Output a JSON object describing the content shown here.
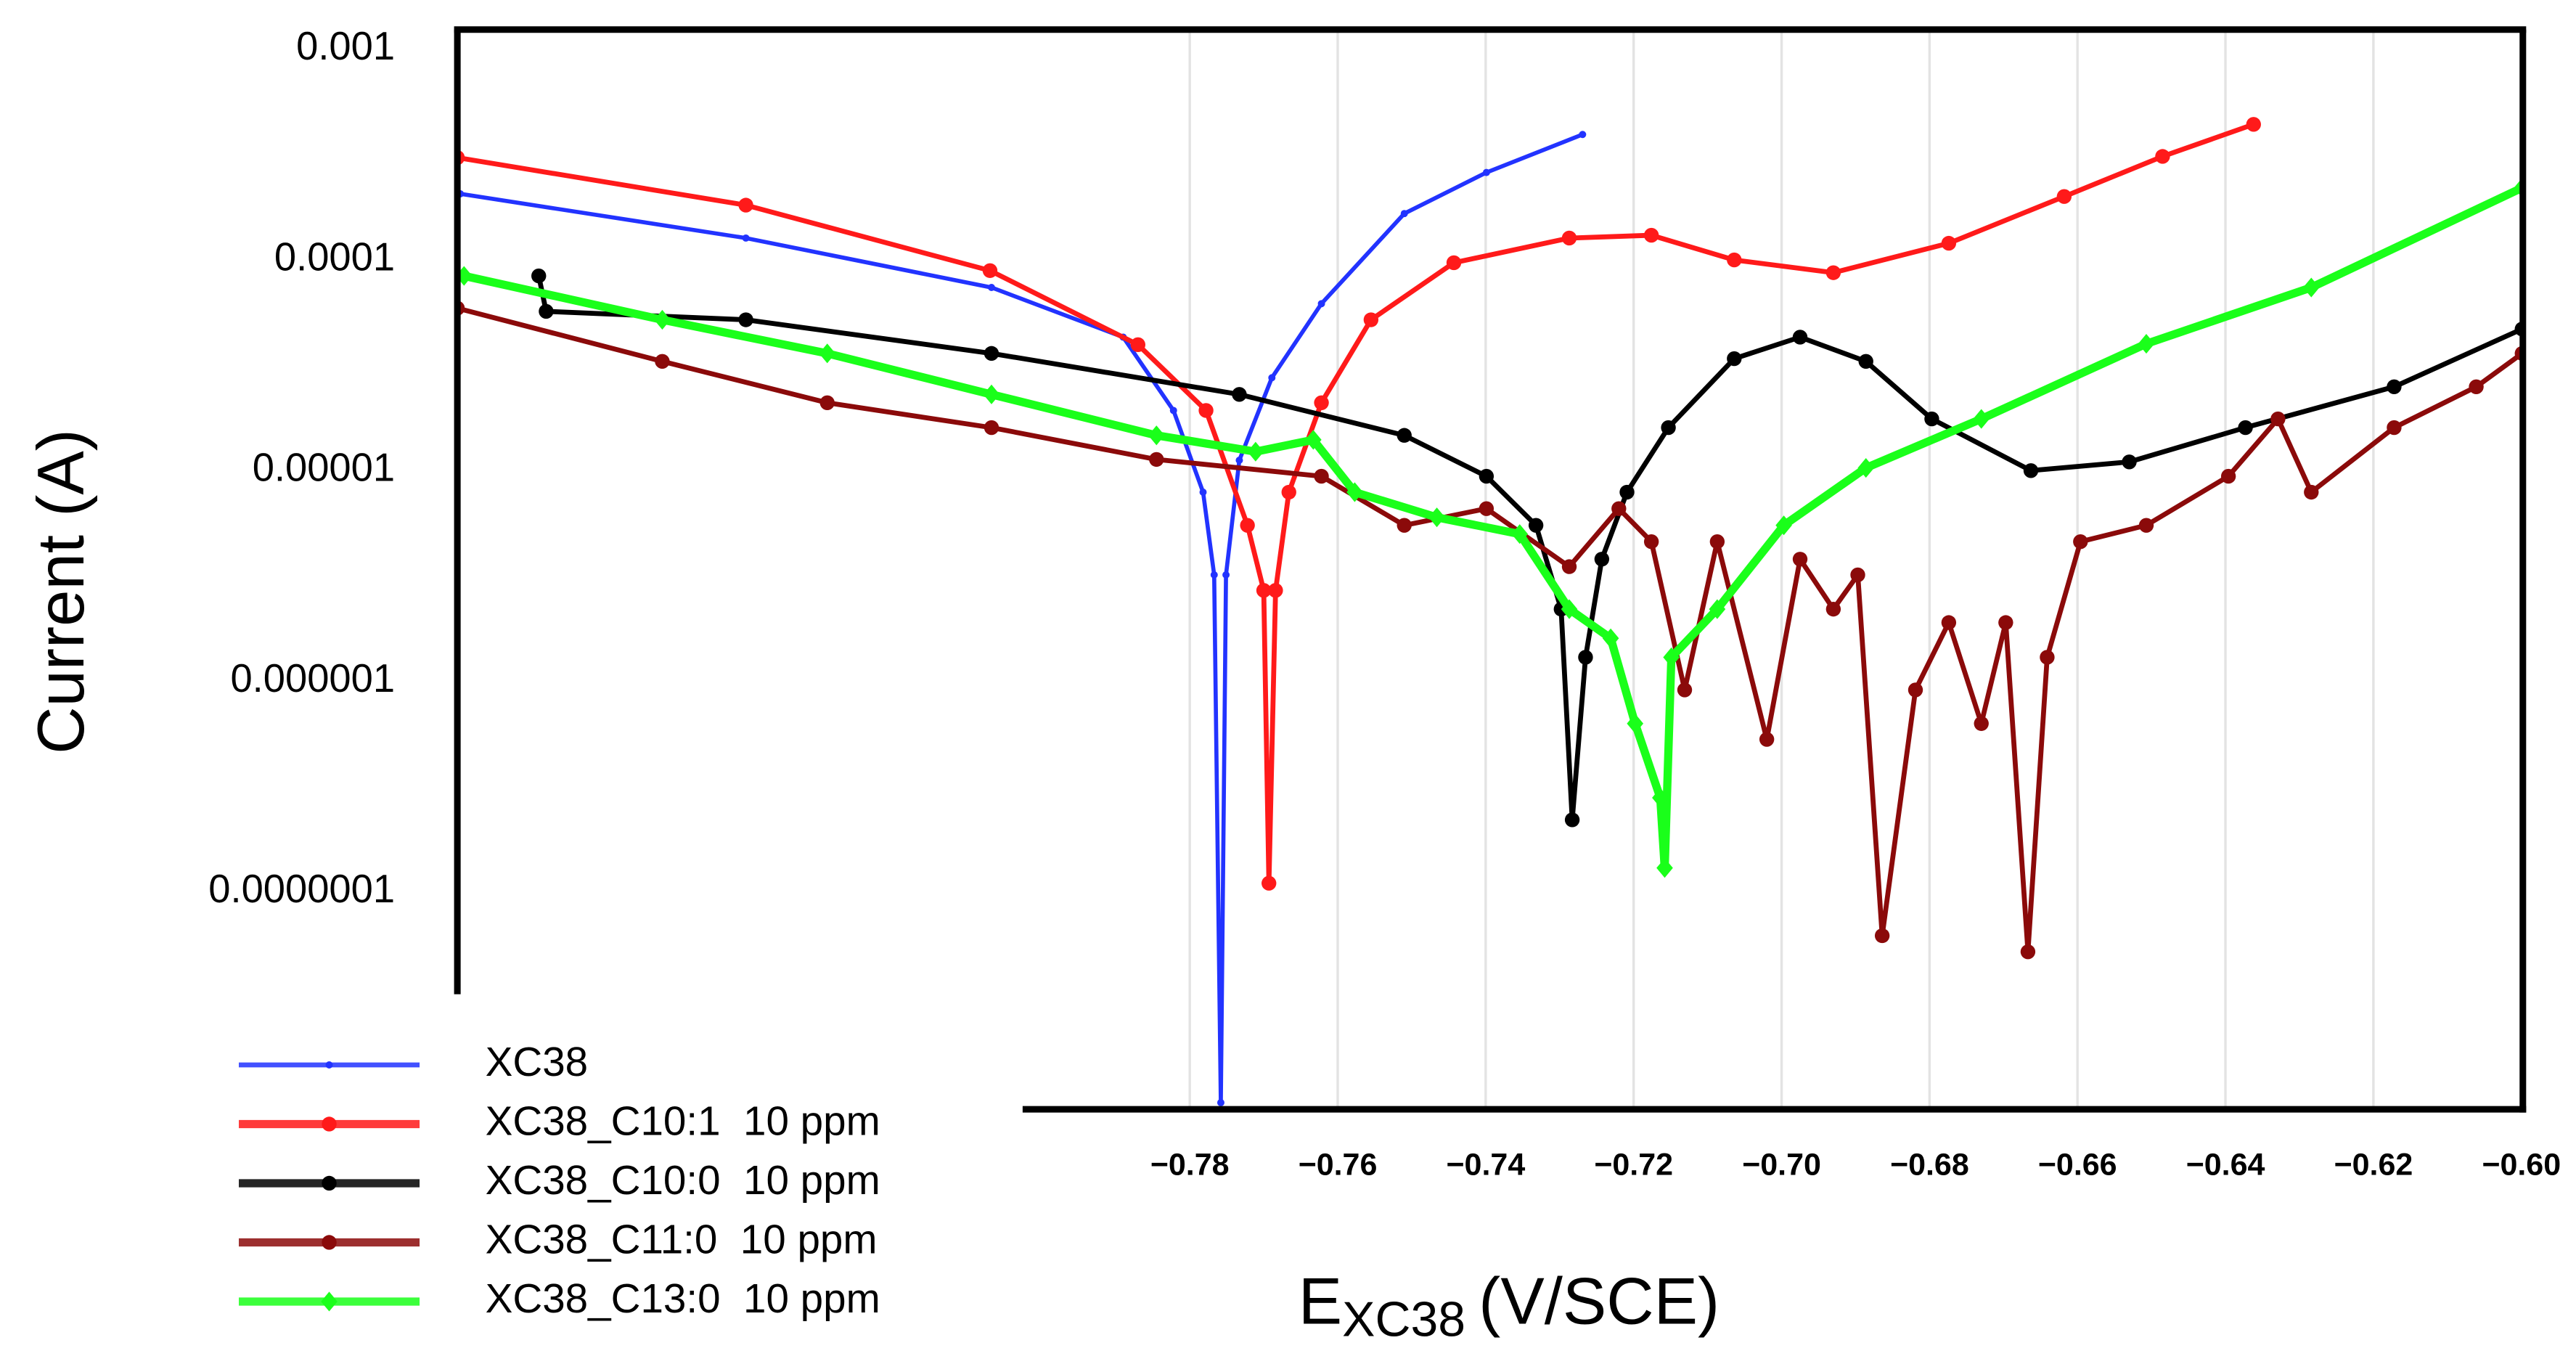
{
  "chart_data": {
    "type": "line",
    "log_y": true,
    "grid": true,
    "y_label": "Current (A)",
    "x_label": {
      "main": "E",
      "sub": "XC38",
      "unit": "(V/SCE)"
    },
    "xlim": [
      -0.879,
      -0.5998
    ],
    "ylim": [
      9.3e-09,
      0.00124
    ],
    "xticks": [
      {
        "value": -0.78,
        "label": "−0.78"
      },
      {
        "value": -0.76,
        "label": "−0.76"
      },
      {
        "value": -0.74,
        "label": "−0.74"
      },
      {
        "value": -0.72,
        "label": "−0.72"
      },
      {
        "value": -0.7,
        "label": "−0.70"
      },
      {
        "value": -0.68,
        "label": "−0.68"
      },
      {
        "value": -0.66,
        "label": "−0.66"
      },
      {
        "value": -0.64,
        "label": "−0.64"
      },
      {
        "value": -0.62,
        "label": "−0.62"
      },
      {
        "value": -0.6,
        "label": "−0.60"
      }
    ],
    "yticks": [
      0.001,
      0.0001,
      1e-05,
      1e-06,
      1e-07
    ],
    "legend": "lower-left",
    "series": [
      {
        "name": "XC38",
        "color": "#2233ff",
        "marker": "dot",
        "x": [
          -0.8786,
          -0.84,
          -0.8068,
          -0.789,
          -0.7822,
          -0.7782,
          -0.7767,
          -0.7758,
          -0.7751,
          -0.7733,
          -0.7689,
          -0.7622,
          -0.751,
          -0.7399,
          -0.7269
        ],
        "values": [
          0.000206,
          0.000127,
          7.4e-05,
          4.3e-05,
          1.93e-05,
          7.9e-06,
          3.2e-06,
          1e-08,
          3.2e-06,
          1.12e-05,
          2.76e-05,
          6.2e-05,
          0.000166,
          0.00026,
          0.000394
        ]
      },
      {
        "name": "XC38_C10:1  10 ppm",
        "color": "#ff1a1a",
        "marker": "circle",
        "x": [
          -0.879,
          -0.84,
          -0.807,
          -0.787,
          -0.7778,
          -0.7722,
          -0.77,
          -0.7693,
          -0.7684,
          -0.7666,
          -0.7622,
          -0.7555,
          -0.7443,
          -0.7287,
          -0.7176,
          -0.7064,
          -0.693,
          -0.6774,
          -0.6618,
          -0.6485,
          -0.6362
        ],
        "values": [
          0.000306,
          0.000182,
          8.9e-05,
          3.96e-05,
          1.93e-05,
          5.5e-06,
          2.7e-06,
          1.1e-07,
          2.7e-06,
          7.9e-06,
          2.1e-05,
          5.2e-05,
          9.7e-05,
          0.000127,
          0.000131,
          0.0001,
          8.7e-05,
          0.00012,
          0.0002,
          0.00031,
          0.00044
        ]
      },
      {
        "name": "XC38_C10:0  10 ppm",
        "color": "#000000",
        "marker": "circle",
        "x": [
          -0.868,
          -0.867,
          -0.84,
          -0.8068,
          -0.7733,
          -0.751,
          -0.7399,
          -0.7332,
          -0.7298,
          -0.7283,
          -0.7265,
          -0.7243,
          -0.7209,
          -0.7153,
          -0.7064,
          -0.6975,
          -0.6886,
          -0.6797,
          -0.6663,
          -0.653,
          -0.6373,
          -0.6172,
          -0.5999
        ],
        "values": [
          8.4e-05,
          5.7e-05,
          5.2e-05,
          3.6e-05,
          2.3e-05,
          1.47e-05,
          9.4e-06,
          5.5e-06,
          2.2e-06,
          2.2e-07,
          1.3e-06,
          3.8e-06,
          7.9e-06,
          1.6e-05,
          3.4e-05,
          4.3e-05,
          3.3e-05,
          1.76e-05,
          1e-05,
          1.1e-05,
          1.6e-05,
          2.5e-05,
          4.7e-05
        ]
      },
      {
        "name": "XC38_C11:0  10 ppm",
        "color": "#8b0a0a",
        "marker": "circle",
        "x": [
          -0.879,
          -0.8513,
          -0.829,
          -0.8068,
          -0.7845,
          -0.7622,
          -0.751,
          -0.7399,
          -0.7287,
          -0.722,
          -0.7176,
          -0.7131,
          -0.7087,
          -0.702,
          -0.6975,
          -0.693,
          -0.6897,
          -0.6864,
          -0.6819,
          -0.6774,
          -0.673,
          -0.6697,
          -0.6667,
          -0.6641,
          -0.6596,
          -0.6507,
          -0.6396,
          -0.6329,
          -0.6284,
          -0.6172,
          -0.6061,
          -0.5999
        ],
        "values": [
          5.9e-05,
          3.3e-05,
          2.1e-05,
          1.6e-05,
          1.13e-05,
          9.4e-06,
          5.5e-06,
          6.6e-06,
          3.5e-06,
          6.6e-06,
          4.6e-06,
          9.1e-07,
          4.6e-06,
          5.3e-07,
          3.8e-06,
          2.2e-06,
          3.2e-06,
          6.2e-08,
          9.1e-07,
          1.9e-06,
          6.3e-07,
          1.9e-06,
          5.2e-08,
          1.3e-06,
          4.6e-06,
          5.5e-06,
          9.4e-06,
          1.76e-05,
          7.9e-06,
          1.6e-05,
          2.5e-05,
          3.6e-05
        ]
      },
      {
        "name": "XC38_C13:0  10 ppm",
        "color": "#1aff1a",
        "marker": "diamond",
        "x": [
          -0.8781,
          -0.8513,
          -0.829,
          -0.8068,
          -0.7845,
          -0.7711,
          -0.7633,
          -0.7577,
          -0.7466,
          -0.7354,
          -0.7287,
          -0.7231,
          -0.7198,
          -0.7164,
          -0.7158,
          -0.7149,
          -0.7087,
          -0.6997,
          -0.6886,
          -0.673,
          -0.6507,
          -0.6284,
          -0.5999
        ],
        "values": [
          8.4e-05,
          5.2e-05,
          3.6e-05,
          2.3e-05,
          1.47e-05,
          1.23e-05,
          1.4e-05,
          7.9e-06,
          6e-06,
          5e-06,
          2.2e-06,
          1.6e-06,
          6.3e-07,
          2.8e-07,
          1.3e-07,
          1.3e-06,
          2.2e-06,
          5.5e-06,
          1.03e-05,
          1.76e-05,
          4e-05,
          7.4e-05,
          0.00022
        ]
      }
    ]
  }
}
